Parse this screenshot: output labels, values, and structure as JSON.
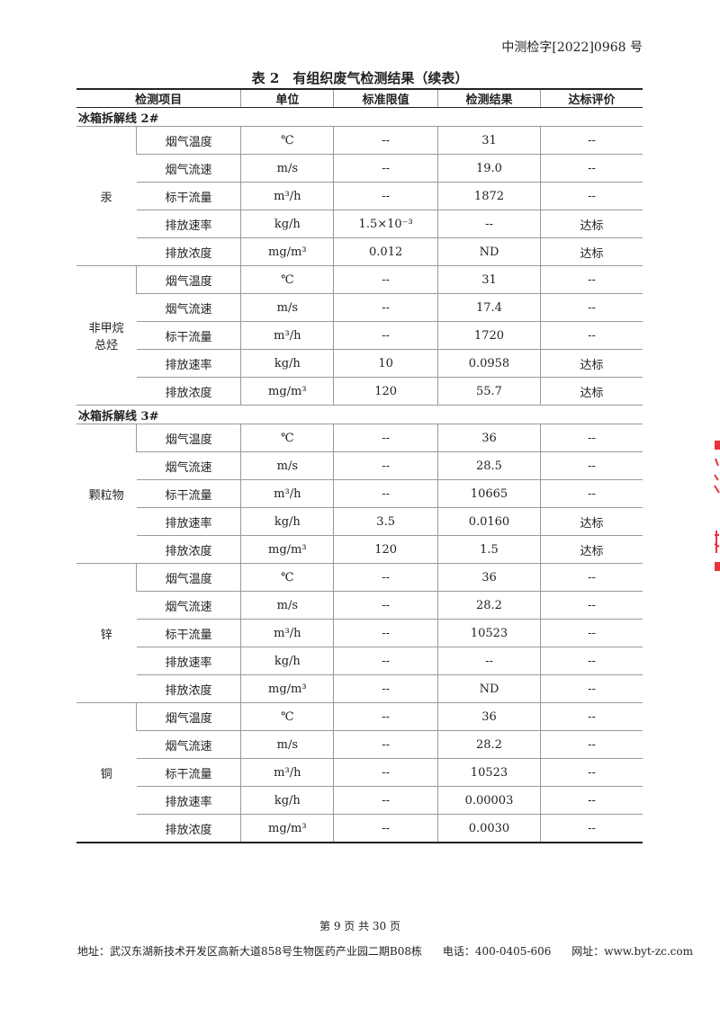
{
  "header": {
    "doc_number": "中测检字[2022]0968 号"
  },
  "table": {
    "title": "表 2　有组织废气检测结果（续表）",
    "columns": [
      "检测项目",
      "单位",
      "标准限值",
      "检测结果",
      "达标评价"
    ],
    "sections": [
      {
        "name": "冰箱拆解线 2#",
        "groups": [
          {
            "name": "汞",
            "rows": [
              [
                "烟气温度",
                "℃",
                "--",
                "31",
                "--"
              ],
              [
                "烟气流速",
                "m/s",
                "--",
                "19.0",
                "--"
              ],
              [
                "标干流量",
                "m³/h",
                "--",
                "1872",
                "--"
              ],
              [
                "排放速率",
                "kg/h",
                "1.5×10⁻³",
                "--",
                "达标"
              ],
              [
                "排放浓度",
                "mg/m³",
                "0.012",
                "ND",
                "达标"
              ]
            ]
          },
          {
            "name": "非甲烷\n总烃",
            "rows": [
              [
                "烟气温度",
                "℃",
                "--",
                "31",
                "--"
              ],
              [
                "烟气流速",
                "m/s",
                "--",
                "17.4",
                "--"
              ],
              [
                "标干流量",
                "m³/h",
                "--",
                "1720",
                "--"
              ],
              [
                "排放速率",
                "kg/h",
                "10",
                "0.0958",
                "达标"
              ],
              [
                "排放浓度",
                "mg/m³",
                "120",
                "55.7",
                "达标"
              ]
            ]
          }
        ]
      },
      {
        "name": "冰箱拆解线 3#",
        "groups": [
          {
            "name": "颗粒物",
            "rows": [
              [
                "烟气温度",
                "℃",
                "--",
                "36",
                "--"
              ],
              [
                "烟气流速",
                "m/s",
                "--",
                "28.5",
                "--"
              ],
              [
                "标干流量",
                "m³/h",
                "--",
                "10665",
                "--"
              ],
              [
                "排放速率",
                "kg/h",
                "3.5",
                "0.0160",
                "达标"
              ],
              [
                "排放浓度",
                "mg/m³",
                "120",
                "1.5",
                "达标"
              ]
            ]
          },
          {
            "name": "锌",
            "rows": [
              [
                "烟气温度",
                "℃",
                "--",
                "36",
                "--"
              ],
              [
                "烟气流速",
                "m/s",
                "--",
                "28.2",
                "--"
              ],
              [
                "标干流量",
                "m³/h",
                "--",
                "10523",
                "--"
              ],
              [
                "排放速率",
                "kg/h",
                "--",
                "--",
                "--"
              ],
              [
                "排放浓度",
                "mg/m³",
                "--",
                "ND",
                "--"
              ]
            ]
          },
          {
            "name": "铜",
            "rows": [
              [
                "烟气温度",
                "℃",
                "--",
                "36",
                "--"
              ],
              [
                "烟气流速",
                "m/s",
                "--",
                "28.2",
                "--"
              ],
              [
                "标干流量",
                "m³/h",
                "--",
                "10523",
                "--"
              ],
              [
                "排放速率",
                "kg/h",
                "--",
                "0.00003",
                "--"
              ],
              [
                "排放浓度",
                "mg/m³",
                "--",
                "0.0030",
                "--"
              ]
            ]
          }
        ]
      }
    ]
  },
  "footer": {
    "page_number": "第 9 页 共 30 页",
    "address": "地址：武汉东湖新技术开发区高新大道858号生物医药产业园二期B08栋",
    "phone": "电话：400-0405-606",
    "website": "网址：www.byt-zc.com"
  },
  "colors": {
    "seal": "#e8323c"
  }
}
